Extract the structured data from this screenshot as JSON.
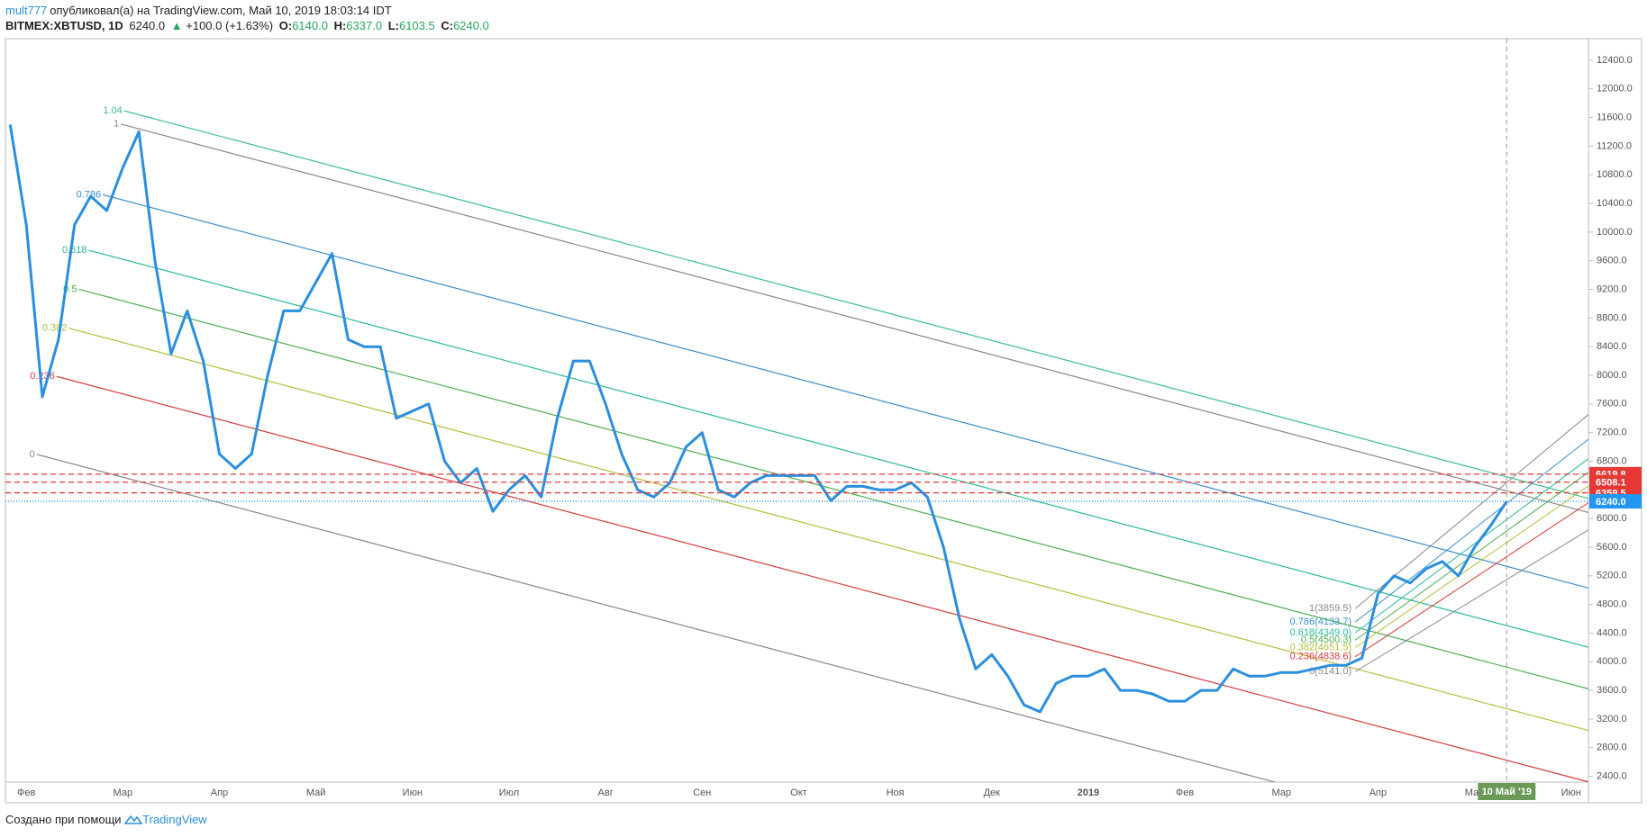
{
  "header": {
    "author": "mult777",
    "published": "опубликовал(а) на TradingView.com, Май 10, 2019 18:03:14 IDT",
    "symbol": "BITMEX:XBTUSD, 1D",
    "last": "6240.0",
    "arrow": "▲",
    "change": "+100.0 (+1.63%)",
    "open_label": "O:",
    "open": "6140.0",
    "high_label": "H:",
    "high": "6337.0",
    "low_label": "L:",
    "low": "6103.5",
    "close_label": "C:",
    "close": "6240.0"
  },
  "footer": {
    "text": "Создано при помощи",
    "brand": "TradingView"
  },
  "chart_data": {
    "type": "line",
    "color": "#2b8fe0",
    "grid": false,
    "categories": [
      null,
      "Фев",
      null,
      null,
      null,
      null,
      null,
      "Мар",
      null,
      null,
      null,
      null,
      null,
      "Апр",
      null,
      null,
      null,
      null,
      null,
      "Май",
      null,
      null,
      null,
      null,
      null,
      "Июн",
      null,
      null,
      null,
      null,
      null,
      "Июл",
      null,
      null,
      null,
      null,
      null,
      "Авг",
      null,
      null,
      null,
      null,
      null,
      "Сен",
      null,
      null,
      null,
      null,
      null,
      "Окт",
      null,
      null,
      null,
      null,
      null,
      "Ноя",
      null,
      null,
      null,
      null,
      null,
      "Дек",
      null,
      null,
      null,
      null,
      null,
      "2019",
      null,
      null,
      null,
      null,
      null,
      "Фев",
      null,
      null,
      null,
      null,
      null,
      "Мар",
      null,
      null,
      null,
      null,
      null,
      "Апр",
      null,
      null,
      null,
      null,
      null,
      "Май",
      null,
      null,
      null,
      null,
      null,
      "Июн"
    ],
    "values": [
      11500,
      10100,
      7700,
      8500,
      10100,
      10500,
      10300,
      10900,
      11400,
      9600,
      8300,
      8900,
      8200,
      6900,
      6700,
      6900,
      8000,
      8900,
      8900,
      9300,
      9700,
      8500,
      8400,
      8400,
      7400,
      7500,
      7600,
      6800,
      6500,
      6700,
      6100,
      6400,
      6600,
      6300,
      7400,
      8200,
      8200,
      7600,
      6900,
      6400,
      6300,
      6500,
      7000,
      7200,
      6400,
      6300,
      6500,
      6600,
      6600,
      6600,
      6600,
      6250,
      6450,
      6450,
      6400,
      6400,
      6500,
      6300,
      5600,
      4600,
      3900,
      4100,
      3800,
      3400,
      3300,
      3700,
      3800,
      3800,
      3900,
      3600,
      3600,
      3550,
      3450,
      3450,
      3600,
      3600,
      3900,
      3800,
      3800,
      3850,
      3850,
      3900,
      3950,
      3950,
      4050,
      4950,
      5200,
      5100,
      5300,
      5400,
      5200,
      5600,
      5900,
      6240,
      null,
      null,
      null,
      null
    ],
    "ylim": [
      2320,
      12700
    ],
    "yticks": [
      {
        "value": 2400,
        "label": "2400.0"
      },
      {
        "value": 2800,
        "label": "2800.0"
      },
      {
        "value": 3200,
        "label": "3200.0"
      },
      {
        "value": 3600,
        "label": "3600.0"
      },
      {
        "value": 4000,
        "label": "4000.0"
      },
      {
        "value": 4400,
        "label": "4400.0"
      },
      {
        "value": 4800,
        "label": "4800.0"
      },
      {
        "value": 5200,
        "label": "5200.0"
      },
      {
        "value": 5600,
        "label": "5600.0"
      },
      {
        "value": 6000,
        "label": "6000.0"
      },
      {
        "value": 6400,
        "label": "6400.0"
      },
      {
        "value": 6800,
        "label": "6800.0"
      },
      {
        "value": 7200,
        "label": "7200.0"
      },
      {
        "value": 7600,
        "label": "7600.0"
      },
      {
        "value": 8000,
        "label": "8000.0"
      },
      {
        "value": 8400,
        "label": "8400.0"
      },
      {
        "value": 8800,
        "label": "8800.0"
      },
      {
        "value": 9200,
        "label": "9200.0"
      },
      {
        "value": 9600,
        "label": "9600.0"
      },
      {
        "value": 10000,
        "label": "10000.0"
      },
      {
        "value": 10400,
        "label": "10400.0"
      },
      {
        "value": 10800,
        "label": "10800.0"
      },
      {
        "value": 11200,
        "label": "11200.0"
      },
      {
        "value": 11600,
        "label": "11600.0"
      },
      {
        "value": 12000,
        "label": "12000.0"
      },
      {
        "value": 12400,
        "label": "12400.0"
      }
    ],
    "fib_levels": [
      {
        "level": 1.04,
        "color": "#3cc08a"
      },
      {
        "level": 1,
        "color": "#888888"
      },
      {
        "level": 0.786,
        "color": "#3a8fcf"
      },
      {
        "level": 0.618,
        "color": "#2ab99b"
      },
      {
        "level": 0.5,
        "color": "#4caf50"
      },
      {
        "level": 0.382,
        "color": "#b4bf3a"
      },
      {
        "level": 0.236,
        "color": "#d93a3a"
      },
      {
        "level": 0,
        "color": "#888888"
      }
    ],
    "fib_levels_2": [
      {
        "level": 1,
        "label": "1(3859.5)",
        "color": "#888888"
      },
      {
        "level": 0.786,
        "label": "0.786(4133.7)",
        "color": "#3a8fcf"
      },
      {
        "level": 0.618,
        "label": "0.618(4349.0)",
        "color": "#2ab99b"
      },
      {
        "level": 0.5,
        "label": "0.5(4500.3)",
        "color": "#4caf50"
      },
      {
        "level": 0.382,
        "label": "0.382(4651.5)",
        "color": "#b4bf3a"
      },
      {
        "level": 0.236,
        "label": "0.236(4838.6)",
        "color": "#d93a3a"
      },
      {
        "level": 0,
        "label": "0(5141.0)",
        "color": "#888888"
      }
    ],
    "price_lines": [
      {
        "value": 6619.8,
        "color": "#e53935",
        "dash": "6 4"
      },
      {
        "value": 6508.1,
        "color": "#e53935",
        "dash": "6 4"
      },
      {
        "value": 6359.5,
        "color": "#e53935",
        "dash": "6 4"
      },
      {
        "value": {
          "value": 6240,
          "label": "6240.0"
        },
        "color": "#2196f3",
        "dash": "1 2"
      }
    ],
    "cursor_label": "10 Май '19",
    "cursor_color": "#6b9a57"
  }
}
